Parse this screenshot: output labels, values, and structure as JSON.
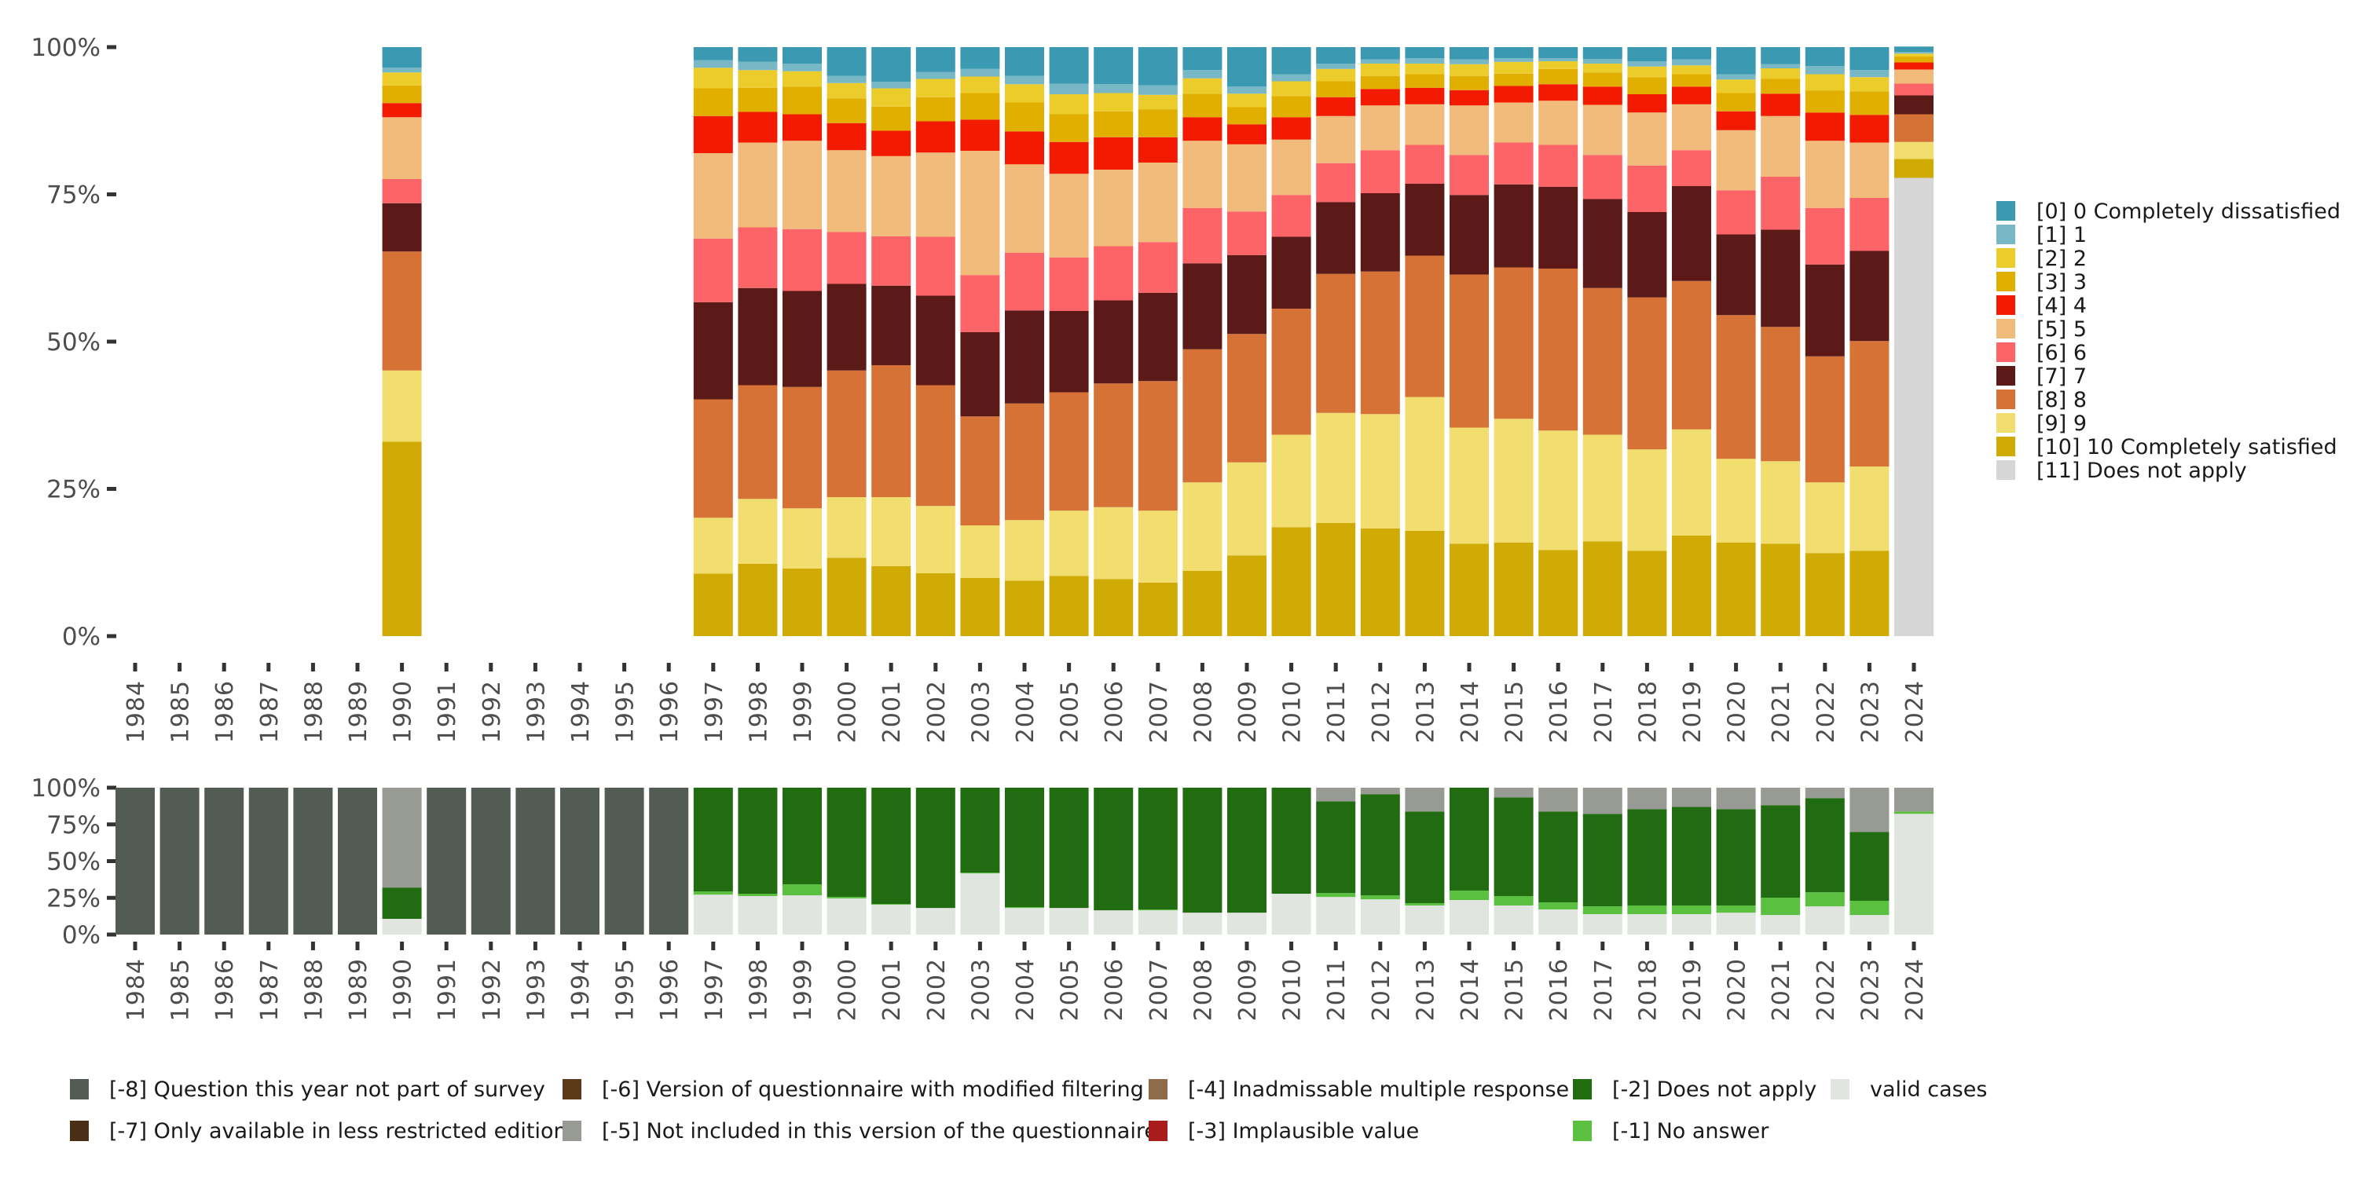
{
  "chart_data": [
    {
      "type": "bar",
      "stacked": true,
      "percent": true,
      "title": "",
      "xlabel": "",
      "ylabel": "",
      "ylim": [
        0,
        100
      ],
      "yticks": [
        "0%",
        "25%",
        "50%",
        "75%",
        "100%"
      ],
      "ytick_values": [
        0,
        25,
        50,
        75,
        100
      ],
      "grid": false,
      "legend_position": "right",
      "categories": [
        "1984",
        "1985",
        "1986",
        "1987",
        "1988",
        "1989",
        "1990",
        "1991",
        "1992",
        "1993",
        "1994",
        "1995",
        "1996",
        "1997",
        "1998",
        "1999",
        "2000",
        "2001",
        "2002",
        "2003",
        "2004",
        "2005",
        "2006",
        "2007",
        "2008",
        "2009",
        "2010",
        "2011",
        "2012",
        "2013",
        "2014",
        "2015",
        "2016",
        "2017",
        "2018",
        "2019",
        "2020",
        "2021",
        "2022",
        "2023",
        "2024"
      ],
      "stack_order_bottom_to_top": [
        "[11] Does not apply",
        "[10] 10 Completely satisfied",
        "[9] 9",
        "[8] 8",
        "[7] 7",
        "[6] 6",
        "[5] 5",
        "[4] 4",
        "[3] 3",
        "[2] 2",
        "[1] 1",
        "[0] 0 Completely dissatisfied"
      ],
      "legend": [
        {
          "label": "[0] 0 Completely dissatisfied",
          "color": "#3b9ab2"
        },
        {
          "label": "[1] 1",
          "color": "#78b7c5"
        },
        {
          "label": "[2] 2",
          "color": "#ebcc2a"
        },
        {
          "label": "[3] 3",
          "color": "#e1af00"
        },
        {
          "label": "[4] 4",
          "color": "#f21a00"
        },
        {
          "label": "[5] 5",
          "color": "#f1bb7b"
        },
        {
          "label": "[6] 6",
          "color": "#fd6467"
        },
        {
          "label": "[7] 7",
          "color": "#5b1a18"
        },
        {
          "label": "[8] 8",
          "color": "#d67236"
        },
        {
          "label": "[9] 9",
          "color": "#f2de6e"
        },
        {
          "label": "[10] 10 Completely satisfied",
          "color": "#d0ab06"
        },
        {
          "label": "[11] Does not apply",
          "color": "#d6d6d6"
        }
      ],
      "series_note": "values per year in legend order [0]..[11], percent",
      "values": {
        "1990": [
          3.5,
          0.8,
          2.2,
          3.0,
          2.4,
          10.5,
          4.1,
          8.2,
          20.2,
          12.1,
          33.0,
          0
        ],
        "1997": [
          2.2,
          1.3,
          3.5,
          4.7,
          6.3,
          14.5,
          10.8,
          16.5,
          20.1,
          9.5,
          10.6,
          0
        ],
        "1998": [
          2.5,
          1.4,
          3.0,
          4.1,
          5.2,
          14.4,
          10.3,
          16.5,
          19.3,
          11.0,
          12.3,
          0
        ],
        "1999": [
          2.8,
          1.3,
          2.6,
          4.7,
          4.5,
          15.0,
          10.5,
          16.3,
          20.6,
          10.2,
          11.5,
          0
        ],
        "2000": [
          4.9,
          1.2,
          2.6,
          4.2,
          4.6,
          13.9,
          8.8,
          14.7,
          21.5,
          10.3,
          13.3,
          0
        ],
        "2001": [
          5.9,
          1.1,
          3.1,
          4.1,
          4.3,
          13.6,
          8.4,
          13.5,
          22.4,
          11.7,
          11.9,
          0
        ],
        "2002": [
          4.2,
          1.2,
          3.1,
          4.1,
          5.3,
          14.3,
          10.0,
          15.2,
          20.5,
          11.4,
          10.7,
          0
        ],
        "2003": [
          3.7,
          1.3,
          2.8,
          4.5,
          5.3,
          21.1,
          9.7,
          14.3,
          18.5,
          8.9,
          9.9,
          0
        ],
        "2004": [
          4.9,
          1.4,
          3.1,
          4.9,
          5.6,
          15.0,
          9.8,
          15.8,
          19.8,
          10.3,
          9.4,
          0
        ],
        "2005": [
          6.2,
          1.8,
          3.4,
          4.7,
          5.4,
          14.2,
          9.1,
          13.8,
          20.1,
          11.1,
          10.2,
          0
        ],
        "2006": [
          6.3,
          1.5,
          3.1,
          4.4,
          5.5,
          13.0,
          9.2,
          14.1,
          21.0,
          12.2,
          9.7,
          0
        ],
        "2007": [
          6.5,
          1.6,
          2.5,
          4.7,
          4.3,
          13.5,
          8.6,
          15.0,
          22.0,
          12.2,
          9.1,
          0
        ],
        "2008": [
          3.9,
          1.4,
          2.6,
          4.0,
          4.0,
          11.4,
          9.4,
          14.6,
          22.6,
          15.0,
          11.1,
          0
        ],
        "2009": [
          6.7,
          1.2,
          2.3,
          2.9,
          3.4,
          11.4,
          7.4,
          13.4,
          21.8,
          15.8,
          13.7,
          0
        ],
        "2010": [
          4.6,
          1.2,
          2.5,
          3.6,
          3.8,
          9.4,
          7.1,
          12.2,
          21.4,
          15.7,
          18.5,
          0
        ],
        "2011": [
          2.8,
          0.9,
          2.1,
          2.7,
          3.2,
          8.0,
          6.6,
          12.2,
          23.6,
          18.7,
          19.2,
          0
        ],
        "2012": [
          2.1,
          0.7,
          2.1,
          2.2,
          2.8,
          7.6,
          7.3,
          13.3,
          24.2,
          19.4,
          18.3,
          0
        ],
        "2013": [
          1.9,
          0.9,
          1.8,
          2.3,
          2.8,
          6.9,
          6.6,
          12.2,
          24.0,
          22.7,
          17.9,
          0
        ],
        "2014": [
          2.1,
          0.8,
          2.0,
          2.4,
          2.6,
          8.4,
          6.8,
          13.5,
          26.0,
          19.7,
          15.7,
          0
        ],
        "2015": [
          1.9,
          0.6,
          2.0,
          2.1,
          2.8,
          6.8,
          7.1,
          14.1,
          25.7,
          21.0,
          15.9,
          0
        ],
        "2016": [
          1.9,
          0.5,
          1.3,
          2.6,
          2.8,
          7.5,
          7.1,
          13.9,
          27.5,
          20.3,
          14.6,
          0
        ],
        "2017": [
          2.0,
          0.8,
          1.5,
          2.4,
          3.1,
          8.5,
          7.5,
          15.1,
          24.9,
          18.1,
          16.1,
          0
        ],
        "2018": [
          2.4,
          0.9,
          1.8,
          2.9,
          3.1,
          9.0,
          7.9,
          14.5,
          25.8,
          17.2,
          14.5,
          0
        ],
        "2019": [
          2.1,
          1.0,
          1.5,
          2.1,
          3.0,
          7.8,
          6.1,
          16.1,
          25.2,
          18.0,
          17.1,
          0
        ],
        "2020": [
          4.6,
          0.9,
          2.3,
          3.1,
          3.2,
          10.2,
          7.5,
          13.7,
          24.4,
          14.2,
          15.9,
          0
        ],
        "2021": [
          2.9,
          0.7,
          1.8,
          2.5,
          3.8,
          10.3,
          9.0,
          16.5,
          22.8,
          14.0,
          15.7,
          0
        ],
        "2022": [
          3.2,
          1.4,
          2.8,
          3.7,
          4.8,
          11.4,
          9.6,
          15.6,
          21.4,
          12.0,
          14.1,
          0
        ],
        "2023": [
          3.9,
          1.2,
          2.4,
          4.0,
          4.7,
          9.4,
          9.0,
          15.3,
          21.3,
          14.3,
          14.5,
          0
        ],
        "2024": [
          0.9,
          0.3,
          0.5,
          1.0,
          1.2,
          2.4,
          2.0,
          3.2,
          4.7,
          2.9,
          3.2,
          77.8
        ]
      }
    },
    {
      "type": "bar",
      "stacked": true,
      "percent": true,
      "title": "",
      "xlabel": "",
      "ylabel": "",
      "ylim": [
        0,
        100
      ],
      "yticks": [
        "0%",
        "25%",
        "50%",
        "75%",
        "100%"
      ],
      "ytick_values": [
        0,
        25,
        50,
        75,
        100
      ],
      "grid": false,
      "legend_position": "bottom",
      "categories": [
        "1984",
        "1985",
        "1986",
        "1987",
        "1988",
        "1989",
        "1990",
        "1991",
        "1992",
        "1993",
        "1994",
        "1995",
        "1996",
        "1997",
        "1998",
        "1999",
        "2000",
        "2001",
        "2002",
        "2003",
        "2004",
        "2005",
        "2006",
        "2007",
        "2008",
        "2009",
        "2010",
        "2011",
        "2012",
        "2013",
        "2014",
        "2015",
        "2016",
        "2017",
        "2018",
        "2019",
        "2020",
        "2021",
        "2022",
        "2023",
        "2024"
      ],
      "legend": [
        {
          "key": "-8",
          "label": "[-8] Question this year not part of survey",
          "color": "#535b55"
        },
        {
          "key": "-7",
          "label": "[-7] Only available in less restricted edition",
          "color": "#4b2e16"
        },
        {
          "key": "-6",
          "label": "[-6] Version of questionnaire with modified filtering",
          "color": "#5a3a18"
        },
        {
          "key": "-5",
          "label": "[-5] Not included in this version of the questionnaire",
          "color": "#989b94"
        },
        {
          "key": "-4",
          "label": "[-4] Inadmissable multiple response",
          "color": "#8f6b4a"
        },
        {
          "key": "-3",
          "label": "[-3] Implausible value",
          "color": "#a81c1c"
        },
        {
          "key": "-2",
          "label": "[-2] Does not apply",
          "color": "#216b10"
        },
        {
          "key": "-1",
          "label": "[-1] No answer",
          "color": "#5bbf40"
        },
        {
          "key": "valid",
          "label": "valid cases",
          "color": "#e0e5e0"
        }
      ],
      "stack_order_bottom_to_top": [
        "valid",
        "-1",
        "-2",
        "-3",
        "-4",
        "-5",
        "-6",
        "-7",
        "-8"
      ],
      "series_note": "values per year as {valid, -1, -2, -5, -8} percent",
      "values": {
        "1984": {
          "valid": 0,
          "-1": 0,
          "-2": 0,
          "-5": 0,
          "-8": 100
        },
        "1985": {
          "valid": 0,
          "-1": 0,
          "-2": 0,
          "-5": 0,
          "-8": 100
        },
        "1986": {
          "valid": 0,
          "-1": 0,
          "-2": 0,
          "-5": 0,
          "-8": 100
        },
        "1987": {
          "valid": 0,
          "-1": 0,
          "-2": 0,
          "-5": 0,
          "-8": 100
        },
        "1988": {
          "valid": 0,
          "-1": 0,
          "-2": 0,
          "-5": 0,
          "-8": 100
        },
        "1989": {
          "valid": 0,
          "-1": 0,
          "-2": 0,
          "-5": 0,
          "-8": 100
        },
        "1990": {
          "valid": 10.7,
          "-1": 0,
          "-2": 21.3,
          "-5": 68.0,
          "-8": 0
        },
        "1991": {
          "valid": 0,
          "-1": 0,
          "-2": 0,
          "-5": 0,
          "-8": 100
        },
        "1992": {
          "valid": 0,
          "-1": 0,
          "-2": 0,
          "-5": 0,
          "-8": 100
        },
        "1993": {
          "valid": 0,
          "-1": 0,
          "-2": 0,
          "-5": 0,
          "-8": 100
        },
        "1994": {
          "valid": 0,
          "-1": 0,
          "-2": 0,
          "-5": 0,
          "-8": 100
        },
        "1995": {
          "valid": 0,
          "-1": 0,
          "-2": 0,
          "-5": 0,
          "-8": 100
        },
        "1996": {
          "valid": 0,
          "-1": 0,
          "-2": 0,
          "-5": 0,
          "-8": 100
        },
        "1997": {
          "valid": 27.2,
          "-1": 2.2,
          "-2": 70.6,
          "-5": 0,
          "-8": 0
        },
        "1998": {
          "valid": 26.2,
          "-1": 1.6,
          "-2": 72.2,
          "-5": 0,
          "-8": 0
        },
        "1999": {
          "valid": 26.7,
          "-1": 7.5,
          "-2": 65.8,
          "-5": 0,
          "-8": 0
        },
        "2000": {
          "valid": 24.6,
          "-1": 1.0,
          "-2": 74.4,
          "-5": 0,
          "-8": 0
        },
        "2001": {
          "valid": 20.3,
          "-1": 0.5,
          "-2": 79.2,
          "-5": 0,
          "-8": 0
        },
        "2002": {
          "valid": 18.1,
          "-1": 0,
          "-2": 81.9,
          "-5": 0,
          "-8": 0
        },
        "2003": {
          "valid": 41.6,
          "-1": 0.6,
          "-2": 57.8,
          "-5": 0,
          "-8": 0
        },
        "2004": {
          "valid": 18.1,
          "-1": 0.6,
          "-2": 81.3,
          "-5": 0,
          "-8": 0
        },
        "2005": {
          "valid": 18.1,
          "-1": 0,
          "-2": 81.9,
          "-5": 0,
          "-8": 0
        },
        "2006": {
          "valid": 16.5,
          "-1": 0,
          "-2": 83.5,
          "-5": 0,
          "-8": 0
        },
        "2007": {
          "valid": 16.5,
          "-1": 0.6,
          "-2": 82.9,
          "-5": 0,
          "-8": 0
        },
        "2008": {
          "valid": 14.9,
          "-1": 0,
          "-2": 85.1,
          "-5": 0,
          "-8": 0
        },
        "2009": {
          "valid": 14.9,
          "-1": 0,
          "-2": 85.1,
          "-5": 0,
          "-8": 0
        },
        "2010": {
          "valid": 27.8,
          "-1": 0,
          "-2": 72.2,
          "-5": 0,
          "-8": 0
        },
        "2011": {
          "valid": 25.6,
          "-1": 2.7,
          "-2": 62.4,
          "-5": 9.3,
          "-8": 0
        },
        "2012": {
          "valid": 24.0,
          "-1": 2.7,
          "-2": 68.9,
          "-5": 4.4,
          "-8": 0
        },
        "2013": {
          "valid": 19.8,
          "-1": 1.6,
          "-2": 62.4,
          "-5": 16.2,
          "-8": 0
        },
        "2014": {
          "valid": 23.5,
          "-1": 6.4,
          "-2": 70.1,
          "-5": 0,
          "-8": 0
        },
        "2015": {
          "valid": 19.8,
          "-1": 6.4,
          "-2": 67.2,
          "-5": 6.6,
          "-8": 0
        },
        "2016": {
          "valid": 17.1,
          "-1": 4.8,
          "-2": 61.9,
          "-5": 16.2,
          "-8": 0
        },
        "2017": {
          "valid": 13.9,
          "-1": 5.3,
          "-2": 63.0,
          "-5": 17.8,
          "-8": 0
        },
        "2018": {
          "valid": 13.9,
          "-1": 5.9,
          "-2": 65.6,
          "-5": 14.6,
          "-8": 0
        },
        "2019": {
          "valid": 13.9,
          "-1": 5.9,
          "-2": 67.2,
          "-5": 13.0,
          "-8": 0
        },
        "2020": {
          "valid": 14.9,
          "-1": 4.9,
          "-2": 65.6,
          "-5": 14.6,
          "-8": 0
        },
        "2021": {
          "valid": 13.3,
          "-1": 11.8,
          "-2": 63.0,
          "-5": 11.9,
          "-8": 0
        },
        "2022": {
          "valid": 19.2,
          "-1": 9.6,
          "-2": 64.1,
          "-5": 7.1,
          "-8": 0
        },
        "2023": {
          "valid": 13.3,
          "-1": 9.7,
          "-2": 46.9,
          "-5": 30.1,
          "-8": 0
        },
        "2024": {
          "valid": 82.2,
          "-1": 1.6,
          "-2": 0,
          "-5": 16.2,
          "-8": 0
        }
      }
    }
  ]
}
